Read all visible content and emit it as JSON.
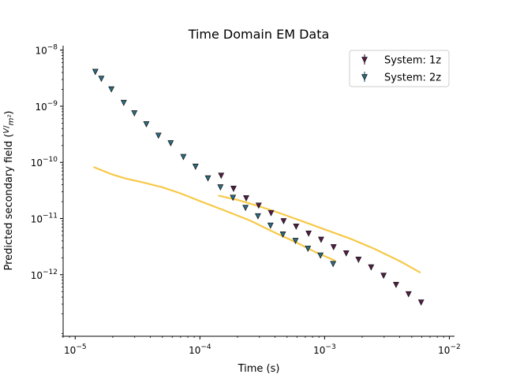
{
  "chart_data": {
    "type": "scatter",
    "title": "Time Domain EM Data",
    "xlabel": "Time (s)",
    "ylabel": "Predicted secondary field",
    "ylabel_unit_numerator": "V",
    "ylabel_unit_denominator": "m²",
    "x_scale": "log",
    "y_scale": "log",
    "xlim": [
      8e-06,
      0.011
    ],
    "ylim": [
      8e-14,
      1.2e-08
    ],
    "x_ticks": [
      {
        "value": 1e-05,
        "base": "10",
        "exp": "−5"
      },
      {
        "value": 0.0001,
        "base": "10",
        "exp": "−4"
      },
      {
        "value": 0.001,
        "base": "10",
        "exp": "−3"
      },
      {
        "value": 0.01,
        "base": "10",
        "exp": "−2"
      }
    ],
    "y_ticks": [
      {
        "value": 1e-12,
        "base": "10",
        "exp": "−12"
      },
      {
        "value": 1e-11,
        "base": "10",
        "exp": "−11"
      },
      {
        "value": 1e-10,
        "base": "10",
        "exp": "−10"
      },
      {
        "value": 1e-09,
        "base": "10",
        "exp": "−9"
      },
      {
        "value": 1e-08,
        "base": "10",
        "exp": "−8"
      }
    ],
    "grid": false,
    "legend_position": "top-right",
    "series": [
      {
        "name": "System: 1z",
        "marker": "triangle-down",
        "color": "#5a1a4a",
        "points": [
          [
            0.000148,
            5.8e-11
          ],
          [
            0.000186,
            3.4e-11
          ],
          [
            0.000235,
            2.3e-11
          ],
          [
            0.000296,
            1.7e-11
          ],
          [
            0.000372,
            1.25e-11
          ],
          [
            0.000469,
            9e-12
          ],
          [
            0.000591,
            7.2e-12
          ],
          [
            0.000744,
            5.4e-12
          ],
          [
            0.000937,
            4.2e-12
          ],
          [
            0.00118,
            3.1e-12
          ],
          [
            0.00149,
            2.4e-12
          ],
          [
            0.00187,
            1.85e-12
          ],
          [
            0.00236,
            1.35e-12
          ],
          [
            0.00297,
            9.6e-13
          ],
          [
            0.00374,
            6.6e-13
          ],
          [
            0.00471,
            4.5e-13
          ],
          [
            0.00594,
            3.2e-13
          ]
        ]
      },
      {
        "name": "System: 2z",
        "marker": "triangle-down",
        "color": "#2a6f86",
        "points": [
          [
            1.45e-05,
            4.1e-09
          ],
          [
            1.62e-05,
            3.1e-09
          ],
          [
            1.95e-05,
            2e-09
          ],
          [
            2.45e-05,
            1.15e-09
          ],
          [
            2.98e-05,
            7.5e-10
          ],
          [
            3.72e-05,
            4.8e-10
          ],
          [
            4.65e-05,
            3e-10
          ],
          [
            5.83e-05,
            2.2e-10
          ],
          [
            7.37e-05,
            1.25e-10
          ],
          [
            9.22e-05,
            8.4e-11
          ],
          [
            0.000116,
            5.2e-11
          ],
          [
            0.000146,
            3.6e-11
          ],
          [
            0.000184,
            2.35e-11
          ],
          [
            0.000232,
            1.55e-11
          ],
          [
            0.000292,
            1.1e-11
          ],
          [
            0.000368,
            7.5e-12
          ],
          [
            0.000463,
            5.2e-12
          ],
          [
            0.000584,
            4e-12
          ],
          [
            0.000735,
            2.9e-12
          ],
          [
            0.000926,
            2.2e-12
          ],
          [
            0.00117,
            1.55e-12
          ]
        ]
      },
      {
        "marker": "line",
        "color": "#f7c948",
        "points": [
          [
            1.42e-05,
            8.2e-11
          ],
          [
            1.9e-05,
            6.3e-11
          ],
          [
            2.5e-05,
            5.2e-11
          ],
          [
            3.5e-05,
            4.4e-11
          ],
          [
            5e-05,
            3.6e-11
          ],
          [
            7e-05,
            2.8e-11
          ],
          [
            0.0001,
            2.05e-11
          ],
          [
            0.00015,
            1.45e-11
          ],
          [
            0.00025,
            9.3e-12
          ],
          [
            0.0004,
            5.6e-12
          ],
          [
            0.0006,
            3.7e-12
          ],
          [
            0.00085,
            2.5e-12
          ],
          [
            0.0012,
            1.8e-12
          ]
        ]
      },
      {
        "marker": "line",
        "color": "#f7c948",
        "points": [
          [
            0.000142,
            2.55e-11
          ],
          [
            0.0002,
            2.15e-11
          ],
          [
            0.0003,
            1.65e-11
          ],
          [
            0.00045,
            1.22e-11
          ],
          [
            0.00065,
            9.1e-12
          ],
          [
            0.001,
            6.4e-12
          ],
          [
            0.0016,
            4.4e-12
          ],
          [
            0.0025,
            2.9e-12
          ],
          [
            0.004,
            1.75e-12
          ],
          [
            0.0058,
            1.1e-12
          ]
        ]
      }
    ]
  }
}
